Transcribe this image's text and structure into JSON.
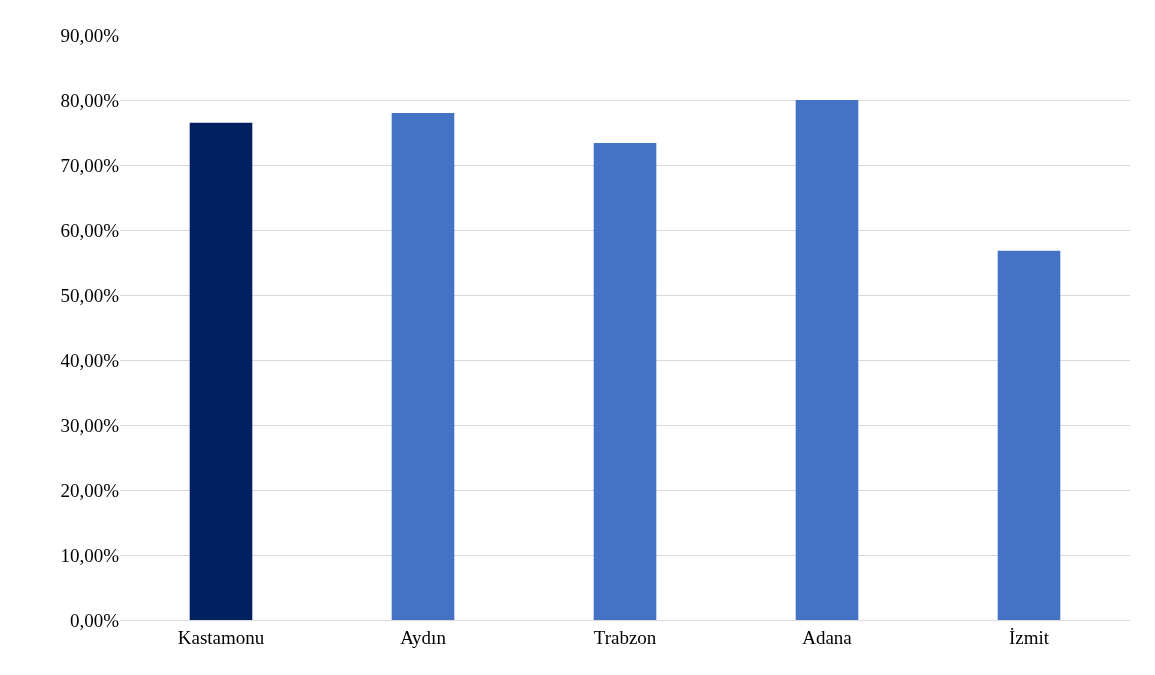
{
  "chart_data": {
    "type": "bar",
    "categories": [
      "Kastamonu",
      "Aydın",
      "Trabzon",
      "Adana",
      "İzmit"
    ],
    "values": [
      76.5,
      78.0,
      73.4,
      80.0,
      56.8
    ],
    "colors": [
      "#002060",
      "#4472c4",
      "#4472c4",
      "#4472c4",
      "#4472c4"
    ],
    "ylim": [
      0,
      90
    ],
    "yticks": [
      {
        "value": 0,
        "label": "0,00%"
      },
      {
        "value": 10,
        "label": "10,00%"
      },
      {
        "value": 20,
        "label": "20,00%"
      },
      {
        "value": 30,
        "label": "30,00%"
      },
      {
        "value": 40,
        "label": "40,00%"
      },
      {
        "value": 50,
        "label": "50,00%"
      },
      {
        "value": 60,
        "label": "60,00%"
      },
      {
        "value": 70,
        "label": "70,00%"
      },
      {
        "value": 80,
        "label": "80,00%"
      },
      {
        "value": 90,
        "label": "90,00%"
      }
    ],
    "grid": "y",
    "legend": false
  }
}
